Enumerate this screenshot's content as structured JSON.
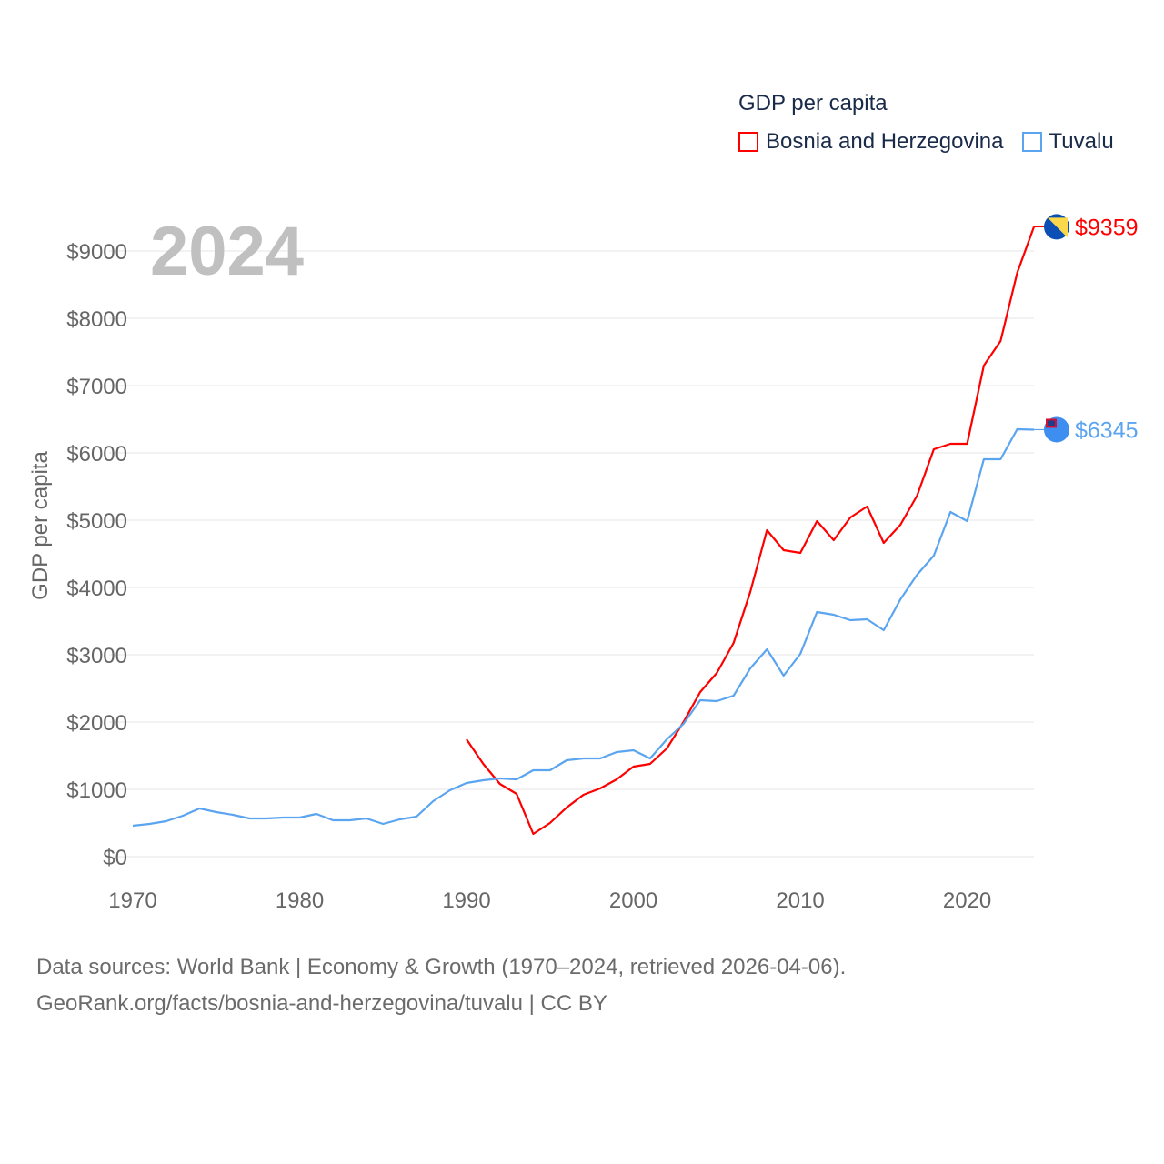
{
  "chart_data": {
    "type": "line",
    "title": "GDP per capita",
    "year_label": "2024",
    "ylabel": "GDP per capita",
    "xlabel": "",
    "ylim": [
      0,
      9500
    ],
    "xlim": [
      1970,
      2024
    ],
    "yticks": [
      0,
      1000,
      2000,
      3000,
      4000,
      5000,
      6000,
      7000,
      8000,
      9000
    ],
    "ytick_labels": [
      "$0",
      "$1000",
      "$2000",
      "$3000",
      "$4000",
      "$5000",
      "$6000",
      "$7000",
      "$8000",
      "$9000"
    ],
    "xticks": [
      1970,
      1980,
      1990,
      2000,
      2010,
      2020
    ],
    "xtick_labels": [
      "1970",
      "1980",
      "1990",
      "2000",
      "2010",
      "2020"
    ],
    "grid": true,
    "legend_placement": "top-right",
    "series": [
      {
        "name": "Bosnia and Herzegovina",
        "color": "#ff0000",
        "end_label": "$9359",
        "start_year": 1990,
        "values": [
          1743,
          1378,
          1081,
          932,
          338,
          500,
          730,
          919,
          1014,
          1149,
          1338,
          1378,
          1608,
          2000,
          2446,
          2730,
          3176,
          3932,
          4851,
          4554,
          4514,
          4986,
          4703,
          5041,
          5203,
          4662,
          4932,
          5365,
          6054,
          6135,
          6135,
          7297,
          7662,
          8676,
          9359
        ]
      },
      {
        "name": "Tuvalu",
        "color": "#5ba4f0",
        "end_label": "$6345",
        "start_year": 1970,
        "values": [
          460,
          486,
          527,
          608,
          716,
          662,
          622,
          568,
          568,
          581,
          581,
          635,
          540,
          540,
          568,
          486,
          554,
          595,
          824,
          986,
          1095,
          1135,
          1162,
          1149,
          1284,
          1284,
          1432,
          1459,
          1459,
          1554,
          1581,
          1459,
          1743,
          1973,
          2324,
          2311,
          2392,
          2797,
          3081,
          2689,
          3014,
          3635,
          3595,
          3514,
          3527,
          3365,
          3824,
          4189,
          4473,
          5122,
          4986,
          5905,
          5905,
          6351,
          6345
        ]
      }
    ]
  },
  "footer": {
    "line1": "Data sources: World Bank | Economy & Growth (1970–2024, retrieved 2026-04-06).",
    "line2": "GeoRank.org/facts/bosnia-and-herzegovina/tuvalu | CC BY"
  }
}
